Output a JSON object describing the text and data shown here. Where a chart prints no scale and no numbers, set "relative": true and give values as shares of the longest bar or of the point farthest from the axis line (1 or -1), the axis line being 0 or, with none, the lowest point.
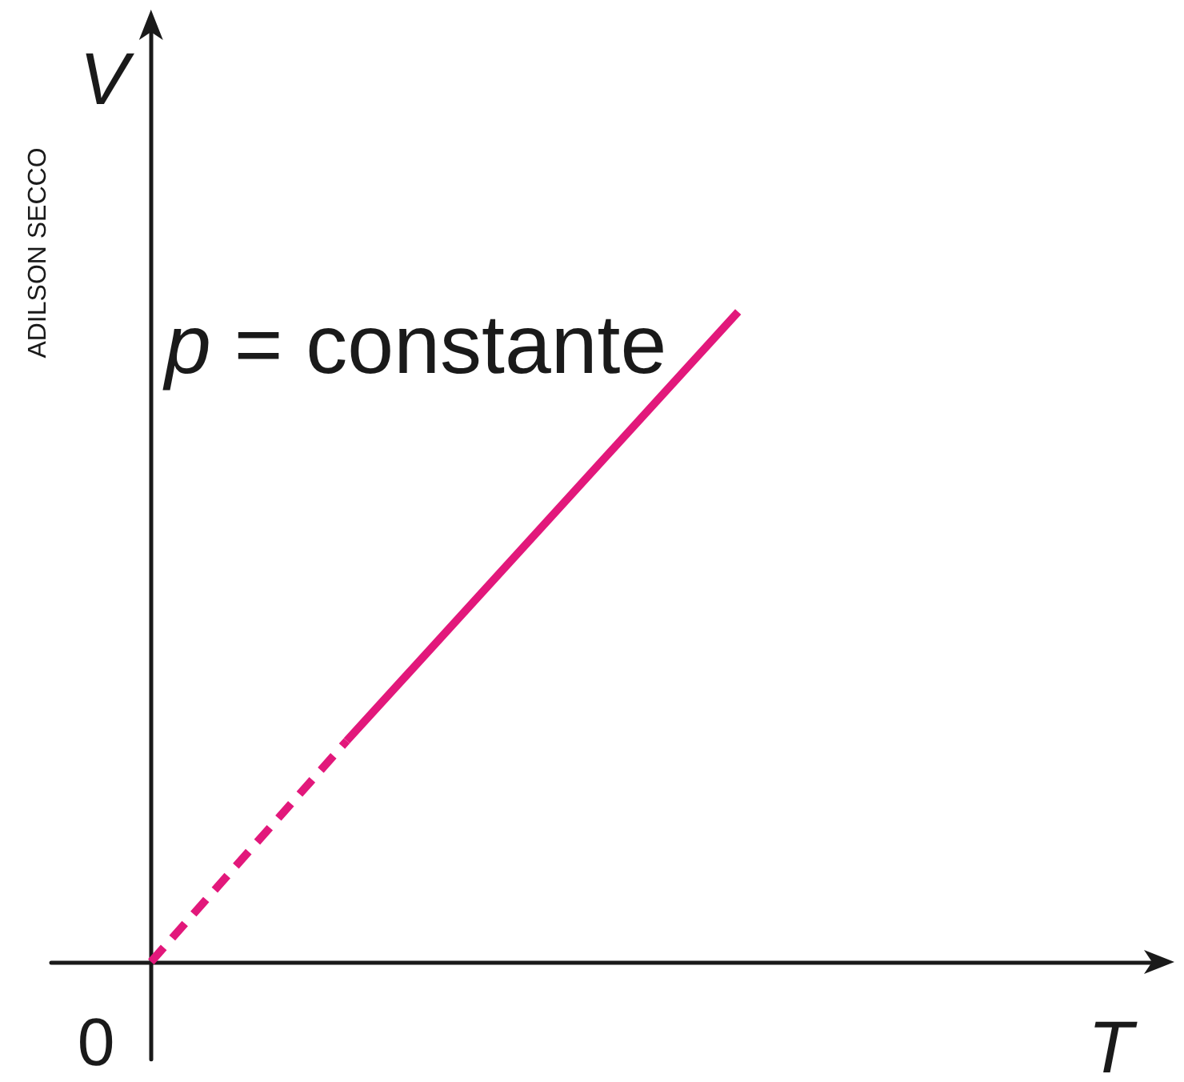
{
  "chart_data": {
    "type": "line",
    "xlabel": "T",
    "ylabel": "V",
    "relative": true,
    "annotations": [
      "p = constante",
      "0",
      "ADILSON SECCO"
    ],
    "categories": [
      null,
      null,
      null,
      null,
      null,
      null
    ],
    "series": [
      {
        "color": "#e2187b",
        "line_style": "dashed",
        "values": [
          0,
          0.34,
          null,
          null,
          null,
          null
        ]
      },
      {
        "color": "#e2187b",
        "line_style": "solid",
        "values": [
          null,
          0.34,
          0.67,
          1,
          null,
          null
        ]
      }
    ]
  }
}
